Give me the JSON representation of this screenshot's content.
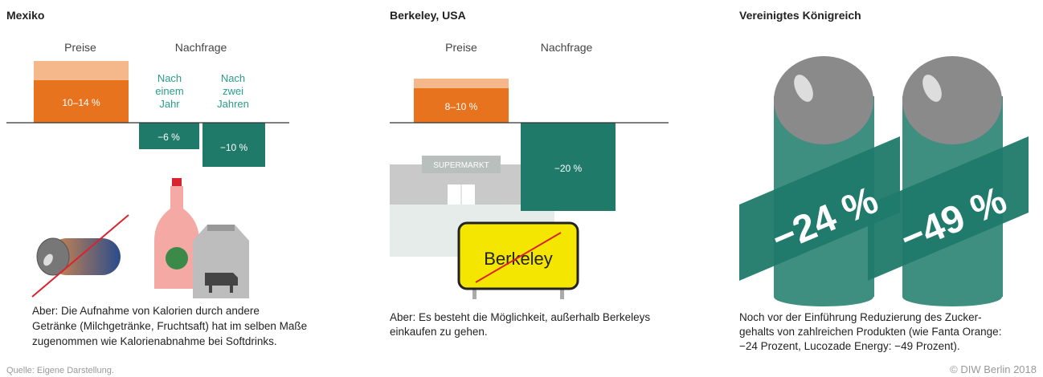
{
  "panels": [
    {
      "title": "Mexiko",
      "price_heading": "Preise",
      "demand_heading": "Nachfrage",
      "price_label": "10–14 %",
      "demand_sublabels": [
        [
          "Nach",
          "einem",
          "Jahr"
        ],
        [
          "Nach",
          "zwei",
          "Jahren"
        ]
      ],
      "demand_labels": [
        "−6 %",
        "−10 %"
      ],
      "caption": [
        "Aber: Die Aufnahme von Kalorien durch andere",
        "Getränke (Milchgetränke, Fruchtsaft) hat im selben Maße",
        "zugenommen wie Kalorienabnahme bei Softdrinks."
      ]
    },
    {
      "title": "Berkeley, USA",
      "price_heading": "Preise",
      "demand_heading": "Nachfrage",
      "price_label": "8–10 %",
      "demand_labels": [
        "−20 %"
      ],
      "supermarket": "SUPERMARKT",
      "sign": "Berkeley",
      "caption": [
        "Aber: Es besteht die Möglichkeit, außerhalb Berkeleys",
        "einkaufen zu gehen."
      ]
    },
    {
      "title": "Vereinigtes Königreich",
      "labels": [
        "−24 %",
        "−49 %"
      ],
      "caption": [
        "Noch vor der Einführung Reduzierung des Zucker-",
        "gehalts von zahlreichen Produkten (wie Fanta Orange:",
        "−24 Prozent, Lucozade Energy: −49 Prozent)."
      ]
    }
  ],
  "source": "Quelle: Eigene Darstellung.",
  "copyright": "© DIW Berlin 2018"
}
